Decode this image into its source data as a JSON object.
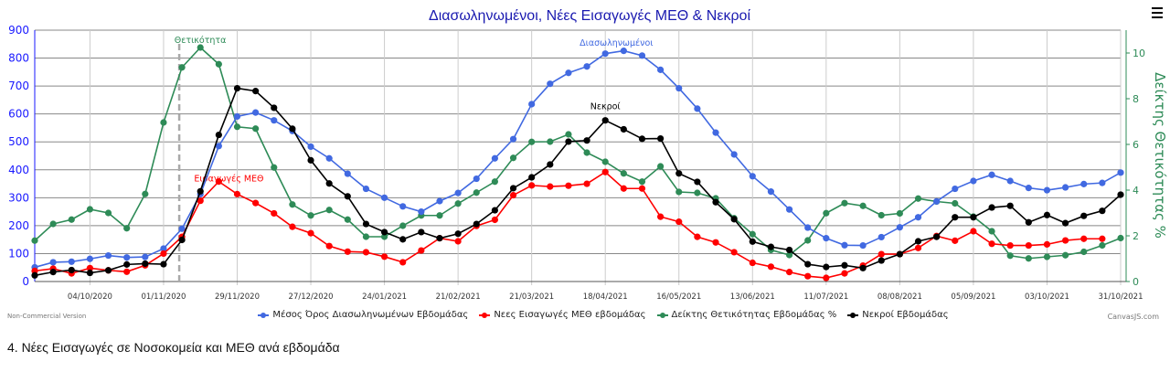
{
  "menu_icon": "hamburger-menu-icon",
  "watermark_left": "Non-Commercial Version",
  "watermark_right": "CanvasJS.com",
  "section_heading": "4. Νέες Εισαγωγές σε Νοσοκομεία και ΜΕΘ ανά εβδομάδα",
  "chart_data": {
    "type": "line",
    "title": "Διασωληνωμένοι, Νέες Εισαγωγές ΜΕΘ & Νεκροί",
    "ylabel": "",
    "y2label": "Δείκτης Θετικότητας %",
    "ylim": [
      0,
      900
    ],
    "y_ticks": [
      "0",
      "100",
      "200",
      "300",
      "400",
      "500",
      "600",
      "700",
      "800",
      "900"
    ],
    "y2lim": [
      0,
      11
    ],
    "y2_ticks": [
      "0",
      "2",
      "4",
      "6",
      "8",
      "10"
    ],
    "grid": true,
    "legend": "bottom",
    "x": [
      "13/09/2020",
      "20/09/2020",
      "27/09/2020",
      "04/10/2020",
      "11/10/2020",
      "18/10/2020",
      "25/10/2020",
      "01/11/2020",
      "08/11/2020",
      "15/11/2020",
      "22/11/2020",
      "29/11/2020",
      "06/12/2020",
      "13/12/2020",
      "20/12/2020",
      "27/12/2020",
      "03/01/2021",
      "10/01/2021",
      "17/01/2021",
      "24/01/2021",
      "31/01/2021",
      "07/02/2021",
      "14/02/2021",
      "21/02/2021",
      "28/02/2021",
      "07/03/2021",
      "14/03/2021",
      "21/03/2021",
      "28/03/2021",
      "04/04/2021",
      "11/04/2021",
      "18/04/2021",
      "25/04/2021",
      "02/05/2021",
      "09/05/2021",
      "16/05/2021",
      "23/05/2021",
      "30/05/2021",
      "06/06/2021",
      "13/06/2021",
      "20/06/2021",
      "27/06/2021",
      "04/07/2021",
      "11/07/2021",
      "18/07/2021",
      "25/07/2021",
      "01/08/2021",
      "08/08/2021",
      "15/08/2021",
      "22/08/2021",
      "29/08/2021",
      "05/09/2021",
      "12/09/2021",
      "19/09/2021",
      "26/09/2021",
      "03/10/2021",
      "10/10/2021",
      "17/10/2021",
      "24/10/2021",
      "31/10/2021"
    ],
    "x_ticks": [
      "04/10/2020",
      "01/11/2020",
      "29/11/2020",
      "27/12/2020",
      "24/01/2021",
      "21/02/2021",
      "21/03/2021",
      "18/04/2021",
      "16/05/2021",
      "13/06/2021",
      "11/07/2021",
      "08/08/2021",
      "05/09/2021",
      "03/10/2021",
      "31/10/2021"
    ],
    "series": [
      {
        "name": "Μέσος Όρος Διασωληνωμένων Εβδομάδας",
        "color": "#4169e1",
        "axis": "left",
        "values": [
          51,
          69,
          71,
          81,
          93,
          86,
          88,
          118,
          189,
          313,
          485,
          591,
          605,
          577,
          539,
          483,
          441,
          386,
          332,
          300,
          269,
          250,
          288,
          317,
          368,
          441,
          510,
          635,
          708,
          747,
          770,
          816,
          826,
          809,
          758,
          692,
          619,
          533,
          455,
          377,
          322,
          258,
          193,
          155,
          130,
          129,
          159,
          194,
          230,
          287,
          332,
          360,
          382,
          360,
          335,
          327,
          337,
          349,
          353,
          390
        ]
      },
      {
        "name": "Νεες Εισαγωγές ΜΕΘ εβδομάδας",
        "color": "#ff0000",
        "axis": "left",
        "values": [
          38,
          46,
          29,
          48,
          40,
          35,
          58,
          100,
          160,
          289,
          358,
          313,
          281,
          244,
          196,
          173,
          127,
          107,
          105,
          89,
          69,
          111,
          155,
          144,
          199,
          221,
          309,
          344,
          340,
          343,
          350,
          392,
          333,
          333,
          232,
          214,
          160,
          140,
          105,
          67,
          53,
          34,
          19,
          13,
          29,
          57,
          98,
          98,
          120,
          163,
          146,
          180,
          135,
          129,
          129,
          133,
          147,
          153,
          153,
          null
        ]
      },
      {
        "name": "Δείκτης Θετικότητας Εβδομάδας %",
        "color": "#2e8b57",
        "axis": "right",
        "values": [
          1.79,
          2.52,
          2.71,
          3.16,
          3.0,
          2.33,
          3.83,
          6.96,
          9.37,
          10.24,
          9.51,
          6.77,
          6.69,
          4.99,
          3.37,
          2.89,
          3.13,
          2.71,
          1.96,
          1.96,
          2.44,
          2.89,
          2.89,
          3.41,
          3.89,
          4.37,
          5.41,
          6.11,
          6.12,
          6.44,
          5.64,
          5.24,
          4.73,
          4.37,
          5.04,
          3.92,
          3.88,
          3.64,
          2.77,
          2.07,
          1.38,
          1.16,
          1.8,
          2.99,
          3.43,
          3.31,
          2.9,
          2.98,
          3.63,
          3.5,
          3.42,
          2.84,
          2.2,
          1.13,
          1.01,
          1.08,
          1.15,
          1.3,
          1.58,
          1.9
        ]
      },
      {
        "name": "Νεκροί Εβδομάδας",
        "color": "#000000",
        "axis": "left",
        "values": [
          22,
          34,
          41,
          31,
          40,
          61,
          64,
          62,
          149,
          323,
          525,
          692,
          682,
          622,
          547,
          434,
          351,
          305,
          206,
          177,
          151,
          177,
          155,
          171,
          206,
          255,
          334,
          373,
          419,
          501,
          505,
          577,
          545,
          511,
          512,
          387,
          357,
          284,
          223,
          143,
          124,
          113,
          62,
          52,
          58,
          48,
          75,
          98,
          144,
          160,
          230,
          230,
          265,
          271,
          212,
          238,
          209,
          235,
          253,
          311
        ]
      }
    ],
    "annotations": [
      {
        "text": "Θετικότητα",
        "x": "08/11/2020",
        "type": "vertical-line",
        "color": "#2e8b57"
      },
      {
        "text": "Εισαγωγές ΜΕΘ",
        "x": "29/11/2020",
        "series": 1,
        "color": "#ff0000"
      },
      {
        "text": "Διασωληνωμένοι",
        "x": "25/04/2021",
        "series": 0,
        "color": "#4169e1"
      },
      {
        "text": "Νεκροί",
        "x": "18/04/2021",
        "series": 3,
        "color": "#000000"
      }
    ]
  }
}
